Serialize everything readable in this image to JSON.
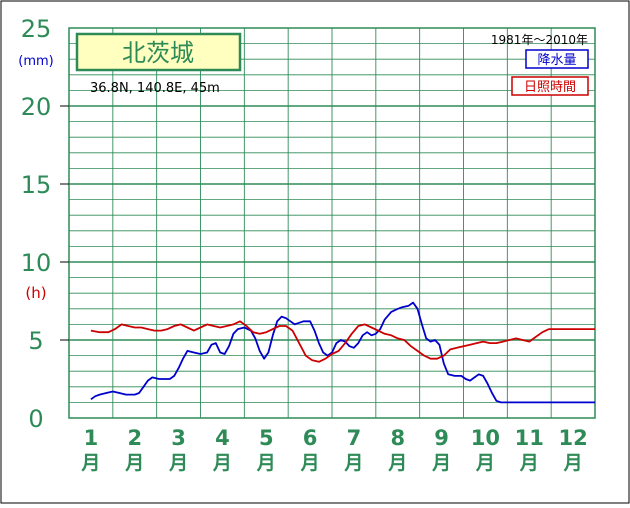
{
  "chart_data": {
    "type": "line",
    "station": "北茨城",
    "location": "36.8N,  140.8E,  45m",
    "period": "1981年〜2010年",
    "unit_precip": "(mm)",
    "unit_sun": "(h)",
    "y_ticks": [
      "0",
      "5",
      "10",
      "15",
      "20",
      "25"
    ],
    "ylim": [
      0,
      25
    ],
    "months": [
      "1",
      "2",
      "3",
      "4",
      "5",
      "6",
      "7",
      "8",
      "9",
      "10",
      "11",
      "12"
    ],
    "month_suffix": "月",
    "legend": [
      "降水量",
      "日照時間"
    ],
    "colors": {
      "precip": "#0000cc",
      "sun": "#cc0000",
      "grid": "#2e8b57",
      "label": "#2e8b57",
      "title_bg": "#ffffc0"
    },
    "series": [
      {
        "name": "降水量",
        "x": [
          1,
          1.1,
          1.2,
          1.35,
          1.5,
          1.65,
          1.8,
          1.9,
          2,
          2.1,
          2.2,
          2.3,
          2.4,
          2.55,
          2.7,
          2.8,
          2.9,
          3,
          3.1,
          3.2,
          3.35,
          3.5,
          3.65,
          3.75,
          3.85,
          3.95,
          4.05,
          4.15,
          4.25,
          4.35,
          4.5,
          4.65,
          4.75,
          4.85,
          4.95,
          5.05,
          5.15,
          5.25,
          5.35,
          5.45,
          5.55,
          5.65,
          5.75,
          5.85,
          6,
          6.1,
          6.2,
          6.3,
          6.4,
          6.5,
          6.6,
          6.7,
          6.8,
          6.9,
          7,
          7.1,
          7.2,
          7.3,
          7.4,
          7.5,
          7.6,
          7.7,
          7.85,
          8,
          8.1,
          8.25,
          8.35,
          8.45,
          8.55,
          8.65,
          8.75,
          8.85,
          8.95,
          9.05,
          9.15,
          9.3,
          9.45,
          9.55,
          9.65,
          9.75,
          9.85,
          9.95,
          10.05,
          10.15,
          10.25,
          10.35,
          10.45,
          10.55,
          10.7,
          10.85,
          11,
          11.15,
          11.3,
          11.45,
          11.6,
          11.75,
          11.9,
          12,
          12.15,
          12.3,
          12.5
        ],
        "values": [
          1.2,
          1.4,
          1.5,
          1.6,
          1.7,
          1.6,
          1.5,
          1.5,
          1.5,
          1.6,
          2.0,
          2.4,
          2.6,
          2.5,
          2.5,
          2.5,
          2.7,
          3.2,
          3.8,
          4.3,
          4.2,
          4.1,
          4.2,
          4.7,
          4.8,
          4.2,
          4.1,
          4.6,
          5.4,
          5.7,
          5.8,
          5.6,
          5.1,
          4.3,
          3.8,
          4.2,
          5.3,
          6.2,
          6.5,
          6.4,
          6.2,
          6.0,
          6.1,
          6.2,
          6.2,
          5.6,
          4.8,
          4.2,
          4.0,
          4.2,
          4.8,
          5.0,
          4.9,
          4.6,
          4.5,
          4.8,
          5.3,
          5.5,
          5.3,
          5.4,
          5.7,
          6.3,
          6.8,
          7.0,
          7.1,
          7.2,
          7.4,
          7.0,
          6.0,
          5.1,
          4.9,
          5.0,
          4.7,
          3.5,
          2.8,
          2.7,
          2.7,
          2.5,
          2.4,
          2.6,
          2.8,
          2.7,
          2.2,
          1.6,
          1.1,
          1.0,
          1.0,
          1.0,
          1.0,
          1.0,
          1.0,
          1.0,
          1.0,
          1.0,
          1.0,
          1.0,
          1.0,
          1.0,
          1.0,
          1.0,
          1.0
        ]
      },
      {
        "name": "日照時間",
        "x": [
          1,
          1.2,
          1.4,
          1.55,
          1.7,
          1.85,
          2,
          2.15,
          2.3,
          2.45,
          2.6,
          2.75,
          2.9,
          3.05,
          3.2,
          3.35,
          3.5,
          3.65,
          3.8,
          3.95,
          4.1,
          4.25,
          4.4,
          4.55,
          4.7,
          4.85,
          5,
          5.15,
          5.3,
          5.45,
          5.6,
          5.75,
          5.9,
          6.05,
          6.2,
          6.35,
          6.5,
          6.65,
          6.8,
          6.95,
          7.1,
          7.25,
          7.4,
          7.55,
          7.7,
          7.85,
          8,
          8.15,
          8.3,
          8.45,
          8.6,
          8.75,
          8.9,
          9.05,
          9.2,
          9.35,
          9.5,
          9.65,
          9.8,
          9.95,
          10.1,
          10.25,
          10.4,
          10.55,
          10.7,
          10.85,
          11,
          11.15,
          11.3,
          11.45,
          11.6,
          11.75,
          11.9,
          12.05,
          12.2,
          12.35,
          12.5
        ],
        "values": [
          5.6,
          5.5,
          5.5,
          5.7,
          6.0,
          5.9,
          5.8,
          5.8,
          5.7,
          5.6,
          5.6,
          5.7,
          5.9,
          6.0,
          5.8,
          5.6,
          5.8,
          6.0,
          5.9,
          5.8,
          5.9,
          6.0,
          6.2,
          5.9,
          5.5,
          5.4,
          5.5,
          5.7,
          5.9,
          5.9,
          5.6,
          4.8,
          4.0,
          3.7,
          3.6,
          3.8,
          4.1,
          4.3,
          4.8,
          5.4,
          5.9,
          6.0,
          5.8,
          5.6,
          5.4,
          5.3,
          5.1,
          5.0,
          4.6,
          4.3,
          4.0,
          3.8,
          3.8,
          4.0,
          4.4,
          4.5,
          4.6,
          4.7,
          4.8,
          4.9,
          4.8,
          4.8,
          4.9,
          5.0,
          5.1,
          5.0,
          4.9,
          5.2,
          5.5,
          5.7,
          5.7,
          5.7,
          5.7,
          5.7,
          5.7,
          5.7,
          5.7
        ]
      }
    ]
  }
}
